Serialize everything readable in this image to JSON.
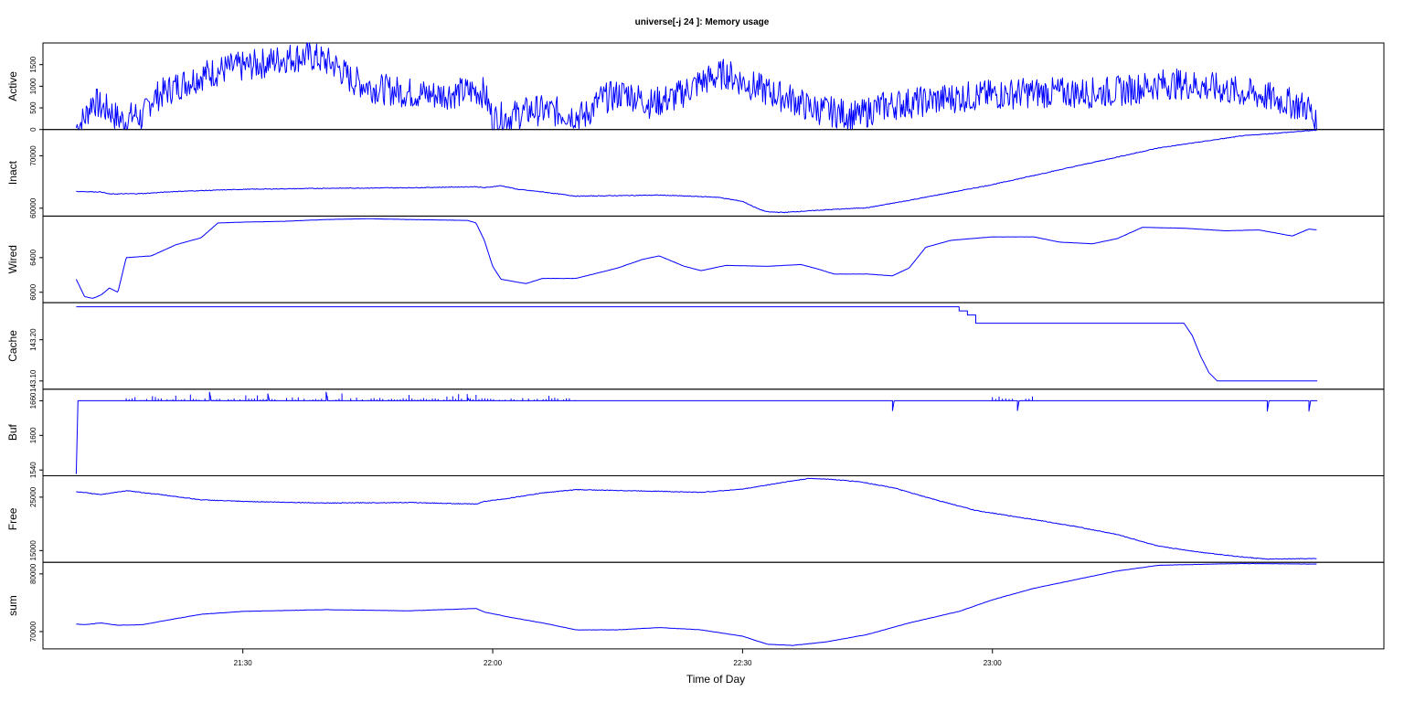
{
  "chart_data": {
    "type": "line",
    "title": "universe[-j 24  ]: Memory usage",
    "xlabel": "Time of Day",
    "x_range_minutes": [
      1266,
      1427
    ],
    "x_ticks": [
      {
        "minutes": 1290,
        "label": "21:30"
      },
      {
        "minutes": 1320,
        "label": "22:00"
      },
      {
        "minutes": 1350,
        "label": "22:30"
      },
      {
        "minutes": 1380,
        "label": "23:00"
      }
    ],
    "series_color": "#0000ff",
    "panels": [
      {
        "name": "Active",
        "ylabel": "Active",
        "ylim": [
          0,
          2000
        ],
        "yticks": [
          {
            "v": 0,
            "label": "0"
          },
          {
            "v": 500,
            "label": "500"
          },
          {
            "v": 1000,
            "label": "1000"
          },
          {
            "v": 1500,
            "label": "1500"
          }
        ],
        "noise": 0.18,
        "spike": 0,
        "points": [
          [
            1270,
            50
          ],
          [
            1271,
            250
          ],
          [
            1272,
            700
          ],
          [
            1273,
            500
          ],
          [
            1274,
            450
          ],
          [
            1275,
            250
          ],
          [
            1276,
            200
          ],
          [
            1277,
            350
          ],
          [
            1278,
            250
          ],
          [
            1279,
            700
          ],
          [
            1282,
            1000
          ],
          [
            1285,
            1250
          ],
          [
            1288,
            1400
          ],
          [
            1290,
            1450
          ],
          [
            1293,
            1550
          ],
          [
            1295,
            1650
          ],
          [
            1298,
            1700
          ],
          [
            1301,
            1500
          ],
          [
            1303,
            1150
          ],
          [
            1306,
            950
          ],
          [
            1310,
            850
          ],
          [
            1313,
            800
          ],
          [
            1316,
            850
          ],
          [
            1318,
            900
          ],
          [
            1319,
            850
          ],
          [
            1320,
            250
          ],
          [
            1322,
            300
          ],
          [
            1325,
            450
          ],
          [
            1328,
            400
          ],
          [
            1331,
            300
          ],
          [
            1333,
            700
          ],
          [
            1336,
            850
          ],
          [
            1339,
            600
          ],
          [
            1342,
            750
          ],
          [
            1345,
            1100
          ],
          [
            1348,
            1300
          ],
          [
            1350,
            1100
          ],
          [
            1352,
            950
          ],
          [
            1354,
            800
          ],
          [
            1356,
            700
          ],
          [
            1358,
            500
          ],
          [
            1361,
            400
          ],
          [
            1364,
            300
          ],
          [
            1366,
            500
          ],
          [
            1369,
            600
          ],
          [
            1372,
            650
          ],
          [
            1376,
            750
          ],
          [
            1380,
            800
          ],
          [
            1384,
            850
          ],
          [
            1388,
            850
          ],
          [
            1392,
            850
          ],
          [
            1396,
            900
          ],
          [
            1400,
            1050
          ],
          [
            1403,
            1050
          ],
          [
            1407,
            950
          ],
          [
            1410,
            850
          ],
          [
            1412,
            800
          ],
          [
            1414,
            700
          ],
          [
            1416,
            600
          ],
          [
            1418,
            500
          ],
          [
            1419,
            0
          ]
        ]
      },
      {
        "name": "Inact",
        "ylabel": "Inact",
        "ylim": [
          58500,
          75000
        ],
        "yticks": [
          {
            "v": 60000,
            "label": "60000"
          },
          {
            "v": 70000,
            "label": "70000"
          }
        ],
        "noise": 0.004,
        "spike": 0,
        "points": [
          [
            1270,
            63200
          ],
          [
            1273,
            63100
          ],
          [
            1274,
            62700
          ],
          [
            1278,
            62800
          ],
          [
            1282,
            63200
          ],
          [
            1290,
            63600
          ],
          [
            1300,
            63800
          ],
          [
            1310,
            63900
          ],
          [
            1318,
            64100
          ],
          [
            1319,
            63900
          ],
          [
            1321,
            64300
          ],
          [
            1323,
            63600
          ],
          [
            1326,
            63100
          ],
          [
            1330,
            62300
          ],
          [
            1340,
            62500
          ],
          [
            1347,
            62100
          ],
          [
            1350,
            61300
          ],
          [
            1352,
            59800
          ],
          [
            1353,
            59300
          ],
          [
            1355,
            59200
          ],
          [
            1360,
            59700
          ],
          [
            1365,
            60100
          ],
          [
            1370,
            61500
          ],
          [
            1380,
            64500
          ],
          [
            1390,
            68000
          ],
          [
            1400,
            71500
          ],
          [
            1410,
            73800
          ],
          [
            1419,
            74900
          ]
        ]
      },
      {
        "name": "Wired",
        "ylabel": "Wired",
        "ylim": [
          5880,
          6880
        ],
        "yticks": [
          {
            "v": 6000,
            "label": "6000"
          },
          {
            "v": 6400,
            "label": "6400"
          }
        ],
        "noise": 0.0009,
        "spike": 0,
        "points": [
          [
            1270,
            6150
          ],
          [
            1271,
            5950
          ],
          [
            1272,
            5930
          ],
          [
            1273,
            5970
          ],
          [
            1274,
            6050
          ],
          [
            1275,
            6000
          ],
          [
            1276,
            6400
          ],
          [
            1279,
            6420
          ],
          [
            1282,
            6550
          ],
          [
            1285,
            6630
          ],
          [
            1287,
            6800
          ],
          [
            1290,
            6810
          ],
          [
            1295,
            6820
          ],
          [
            1300,
            6840
          ],
          [
            1305,
            6850
          ],
          [
            1310,
            6840
          ],
          [
            1317,
            6830
          ],
          [
            1318,
            6800
          ],
          [
            1319,
            6600
          ],
          [
            1320,
            6300
          ],
          [
            1321,
            6150
          ],
          [
            1324,
            6100
          ],
          [
            1326,
            6160
          ],
          [
            1330,
            6160
          ],
          [
            1335,
            6280
          ],
          [
            1338,
            6380
          ],
          [
            1340,
            6420
          ],
          [
            1343,
            6300
          ],
          [
            1345,
            6250
          ],
          [
            1348,
            6310
          ],
          [
            1353,
            6300
          ],
          [
            1357,
            6320
          ],
          [
            1359,
            6270
          ],
          [
            1361,
            6210
          ],
          [
            1365,
            6210
          ],
          [
            1368,
            6190
          ],
          [
            1370,
            6280
          ],
          [
            1372,
            6520
          ],
          [
            1375,
            6600
          ],
          [
            1380,
            6640
          ],
          [
            1385,
            6640
          ],
          [
            1388,
            6580
          ],
          [
            1392,
            6560
          ],
          [
            1395,
            6620
          ],
          [
            1398,
            6750
          ],
          [
            1403,
            6740
          ],
          [
            1408,
            6710
          ],
          [
            1412,
            6720
          ],
          [
            1416,
            6650
          ],
          [
            1418,
            6730
          ],
          [
            1419,
            6720
          ]
        ]
      },
      {
        "name": "Cache",
        "ylabel": "Cache",
        "ylim": [
          143.08,
          143.29
        ],
        "yticks": [
          {
            "v": 143.1,
            "label": "143.10"
          },
          {
            "v": 143.2,
            "label": "143.20"
          }
        ],
        "noise": 0,
        "spike": 0,
        "points": [
          [
            1270,
            143.28
          ],
          [
            1376,
            143.28
          ],
          [
            1376,
            143.27
          ],
          [
            1377,
            143.27
          ],
          [
            1377,
            143.26
          ],
          [
            1378,
            143.26
          ],
          [
            1378,
            143.24
          ],
          [
            1403,
            143.24
          ],
          [
            1404,
            143.21
          ],
          [
            1405,
            143.16
          ],
          [
            1406,
            143.12
          ],
          [
            1407,
            143.1
          ],
          [
            1419,
            143.1
          ]
        ]
      },
      {
        "name": "Buf",
        "ylabel": "Buf",
        "ylim": [
          1530,
          1680
        ],
        "yticks": [
          {
            "v": 1540,
            "label": "1540"
          },
          {
            "v": 1600,
            "label": "1600"
          },
          {
            "v": 1660,
            "label": "1660"
          }
        ],
        "noise": 0,
        "spike": 1,
        "points": [
          [
            1270,
            1533
          ],
          [
            1270.2,
            1660
          ],
          [
            1286,
            1660
          ],
          [
            1286,
            1675
          ],
          [
            1286.2,
            1660
          ],
          [
            1293,
            1660
          ],
          [
            1293,
            1672
          ],
          [
            1293.2,
            1660
          ],
          [
            1300,
            1660
          ],
          [
            1300,
            1675
          ],
          [
            1300.2,
            1660
          ],
          [
            1317,
            1660
          ],
          [
            1317,
            1665
          ],
          [
            1317.2,
            1660
          ],
          [
            1368,
            1660
          ],
          [
            1368,
            1643
          ],
          [
            1368.2,
            1660
          ],
          [
            1383,
            1660
          ],
          [
            1383,
            1643
          ],
          [
            1383.2,
            1660
          ],
          [
            1413,
            1660
          ],
          [
            1413,
            1642
          ],
          [
            1413.2,
            1660
          ],
          [
            1418,
            1660
          ],
          [
            1418,
            1642
          ],
          [
            1418.2,
            1660
          ],
          [
            1419,
            1660
          ]
        ]
      },
      {
        "name": "Free",
        "ylabel": "Free",
        "ylim": [
          12800,
          29000
        ],
        "yticks": [
          {
            "v": 15000,
            "label": "15000"
          },
          {
            "v": 25000,
            "label": "25000"
          }
        ],
        "noise": 0.004,
        "spike": 0,
        "points": [
          [
            1270,
            26000
          ],
          [
            1273,
            25500
          ],
          [
            1276,
            26200
          ],
          [
            1280,
            25500
          ],
          [
            1285,
            24500
          ],
          [
            1290,
            24200
          ],
          [
            1300,
            23900
          ],
          [
            1310,
            24000
          ],
          [
            1318,
            23700
          ],
          [
            1319,
            24200
          ],
          [
            1322,
            24800
          ],
          [
            1326,
            25800
          ],
          [
            1330,
            26400
          ],
          [
            1340,
            26100
          ],
          [
            1345,
            25900
          ],
          [
            1350,
            26500
          ],
          [
            1355,
            27800
          ],
          [
            1358,
            28500
          ],
          [
            1360,
            28400
          ],
          [
            1364,
            27900
          ],
          [
            1368,
            26800
          ],
          [
            1372,
            25000
          ],
          [
            1378,
            22500
          ],
          [
            1385,
            20800
          ],
          [
            1390,
            19500
          ],
          [
            1395,
            18000
          ],
          [
            1400,
            15800
          ],
          [
            1405,
            14700
          ],
          [
            1410,
            13800
          ],
          [
            1413,
            13400
          ],
          [
            1419,
            13500
          ]
        ]
      },
      {
        "name": "sum",
        "ylabel": "sum",
        "ylim": [
          67000,
          82000
        ],
        "yticks": [
          {
            "v": 70000,
            "label": "70000"
          },
          {
            "v": 80000,
            "label": "80000"
          }
        ],
        "noise": 0.0015,
        "spike": 0,
        "points": [
          [
            1270,
            71300
          ],
          [
            1271,
            71200
          ],
          [
            1273,
            71500
          ],
          [
            1275,
            71100
          ],
          [
            1278,
            71200
          ],
          [
            1281,
            72000
          ],
          [
            1285,
            73000
          ],
          [
            1290,
            73500
          ],
          [
            1300,
            73800
          ],
          [
            1310,
            73600
          ],
          [
            1318,
            74000
          ],
          [
            1319,
            73400
          ],
          [
            1322,
            72500
          ],
          [
            1326,
            71500
          ],
          [
            1330,
            70300
          ],
          [
            1335,
            70300
          ],
          [
            1340,
            70700
          ],
          [
            1345,
            70300
          ],
          [
            1350,
            69200
          ],
          [
            1353,
            67800
          ],
          [
            1356,
            67600
          ],
          [
            1360,
            68200
          ],
          [
            1365,
            69500
          ],
          [
            1370,
            71500
          ],
          [
            1376,
            73500
          ],
          [
            1380,
            75500
          ],
          [
            1385,
            77500
          ],
          [
            1390,
            79000
          ],
          [
            1395,
            80500
          ],
          [
            1400,
            81500
          ],
          [
            1410,
            81800
          ],
          [
            1419,
            81700
          ]
        ]
      }
    ]
  }
}
